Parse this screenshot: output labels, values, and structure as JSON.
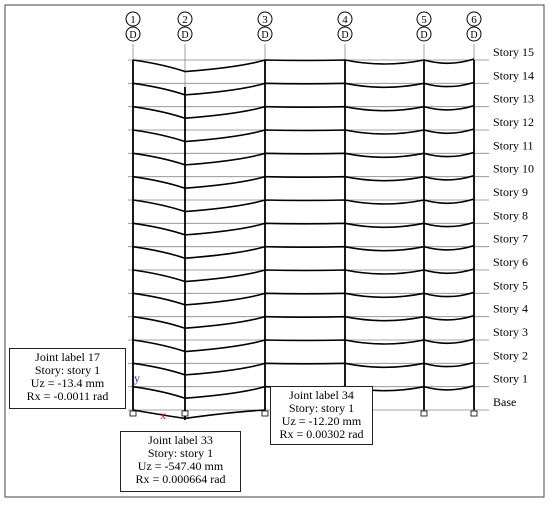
{
  "grid": {
    "axes": [
      {
        "number": "1",
        "letter": "D"
      },
      {
        "number": "2",
        "letter": "D"
      },
      {
        "number": "3",
        "letter": "D"
      },
      {
        "number": "4",
        "letter": "D"
      },
      {
        "number": "5",
        "letter": "D"
      },
      {
        "number": "6",
        "letter": "D"
      }
    ],
    "stories": [
      "Story 15",
      "Story 14",
      "Story 13",
      "Story 12",
      "Story 11",
      "Story 10",
      "Story 9",
      "Story 8",
      "Story 7",
      "Story 6",
      "Story 5",
      "Story 4",
      "Story 3",
      "Story 2",
      "Story 1",
      "Base"
    ]
  },
  "axis_labels": {
    "x": "x",
    "y": "y"
  },
  "colors": {
    "frame": "#000000",
    "grid_line": "#888888",
    "x_axis": "#d01010",
    "y_axis": "#2030c0"
  },
  "joint_17": {
    "label": "Joint label 17",
    "story": "Story: story 1",
    "uz": "Uz = -13.4 mm",
    "rx": "Rx = -0.0011 rad"
  },
  "joint_33": {
    "label": "Joint label 33",
    "story": "Story: story 1",
    "uz": "Uz = -547.40 mm",
    "rx": "Rx = 0.000664 rad"
  },
  "joint_34": {
    "label": "Joint label 34",
    "story": "Story: story 1",
    "uz": "Uz = -12.20 mm",
    "rx": "Rx = 0.00302 rad"
  }
}
